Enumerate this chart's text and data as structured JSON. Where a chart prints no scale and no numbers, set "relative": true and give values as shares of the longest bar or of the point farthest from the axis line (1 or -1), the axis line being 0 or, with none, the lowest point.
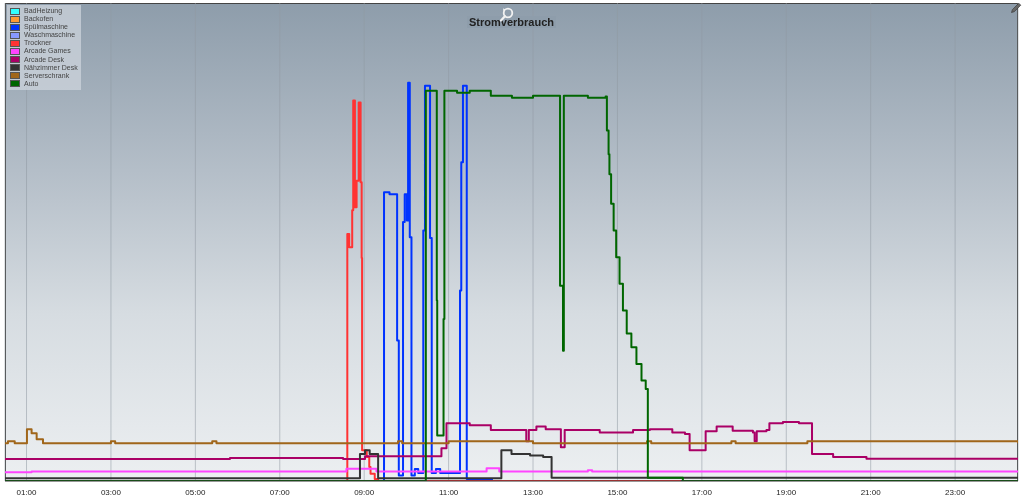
{
  "chart_data": {
    "type": "step",
    "title": "Stromverbrauch",
    "relative": true,
    "xlim": [
      0.49,
      24.49
    ],
    "xticks": [
      {
        "value": 1,
        "label": "01:00"
      },
      {
        "value": 3,
        "label": "03:00"
      },
      {
        "value": 5,
        "label": "05:00"
      },
      {
        "value": 7,
        "label": "07:00"
      },
      {
        "value": 9,
        "label": "09:00"
      },
      {
        "value": 11,
        "label": "11:00"
      },
      {
        "value": 13,
        "label": "13:00"
      },
      {
        "value": 15,
        "label": "15:00"
      },
      {
        "value": 17,
        "label": "17:00"
      },
      {
        "value": 19,
        "label": "19:00"
      },
      {
        "value": 21,
        "label": "21:00"
      },
      {
        "value": 23,
        "label": "23:00"
      }
    ],
    "tick_labels": "x",
    "grid": "x",
    "legend": "top left",
    "marker": "none",
    "line_style": "solid",
    "series": [
      {
        "name": "BadHeizung",
        "color": "#33ffff"
      },
      {
        "name": "Backofen",
        "color": "#ff9933"
      },
      {
        "name": "Spülmaschine",
        "color": "#0033ff",
        "x": [
          9.46,
          9.47,
          9.6,
          9.78,
          9.82,
          9.92,
          9.96,
          10.01,
          10.04,
          10.08,
          10.12,
          10.2,
          10.28,
          10.4,
          10.44,
          10.56,
          10.6,
          10.7,
          10.8,
          11.27,
          11.3,
          11.34,
          11.43,
          12.05
        ],
        "values": [
          0,
          0.725,
          0.72,
          0.353,
          0.014,
          0.65,
          0.72,
          0.654,
          1,
          0.612,
          0.014,
          0.03,
          0.02,
          0.629,
          0.992,
          0.61,
          0.02,
          0.03,
          0.02,
          0.478,
          0.8,
          0.992,
          0.005,
          0.005
        ]
      },
      {
        "name": "Waschmaschine",
        "color": "#8899ff"
      },
      {
        "name": "Trockner",
        "color": "#ff3333",
        "x": [
          8.59,
          8.6,
          8.645,
          8.716,
          8.74,
          8.78,
          8.82,
          8.87,
          8.915,
          8.94,
          8.95,
          9.06,
          9.12,
          9.15,
          9.25,
          9.33,
          16.5
        ],
        "values": [
          0,
          0.62,
          0.587,
          0.68,
          0.955,
          0.687,
          0.754,
          0.95,
          0.75,
          0.56,
          0.077,
          0.06,
          0.035,
          0.018,
          0.005,
          0,
          0
        ]
      },
      {
        "name": "Arcade Games",
        "color": "#ff44ff",
        "x": [
          0.49,
          1.12,
          8.58,
          9.29,
          11.9,
          12.2,
          14.3,
          14.4,
          24.49
        ],
        "values": [
          0.022,
          0.024,
          0.031,
          0.024,
          0.032,
          0.024,
          0.027,
          0.024,
          0.024
        ]
      },
      {
        "name": "Arcade Desk",
        "color": "#aa0066",
        "x": [
          0.49,
          5.82,
          8.5,
          9.02,
          10.83,
          10.95,
          11.5,
          12.0,
          12.84,
          12.9,
          13.08,
          13.3,
          13.66,
          13.75,
          14.58,
          15.37,
          15.77,
          16.3,
          16.6,
          16.71,
          17.09,
          17.35,
          17.73,
          18.21,
          18.25,
          18.3,
          18.53,
          18.6,
          18.92,
          19.3,
          19.61,
          20.11,
          20.9,
          24.49
        ],
        "values": [
          0.055,
          0.058,
          0.055,
          0.062,
          0.082,
          0.145,
          0.14,
          0.128,
          0.1,
          0.128,
          0.137,
          0.13,
          0.085,
          0.128,
          0.122,
          0.128,
          0.13,
          0.122,
          0.118,
          0.077,
          0.125,
          0.137,
          0.126,
          0.122,
          0.1,
          0.125,
          0.128,
          0.145,
          0.148,
          0.145,
          0.068,
          0.06,
          0.056,
          0.055
        ]
      },
      {
        "name": "Nähzimmer Desk",
        "color": "#333333",
        "x": [
          0.49,
          8.9,
          9.02,
          9.13,
          9.33,
          12.25,
          12.49,
          12.93,
          13.24,
          13.44,
          24.49
        ],
        "values": [
          0.007,
          0.068,
          0.077,
          0.068,
          0.007,
          0.077,
          0.068,
          0.064,
          0.06,
          0.008,
          0.008
        ]
      },
      {
        "name": "Serverschrank",
        "color": "#a0661a",
        "x": [
          0.49,
          0.56,
          0.72,
          1.01,
          1.12,
          1.24,
          1.39,
          3.0,
          3.1,
          5.4,
          5.5,
          9.8,
          9.9,
          11.0,
          13.0,
          15.7,
          15.8,
          17.7,
          17.8,
          19.5,
          24.49
        ],
        "values": [
          0.095,
          0.1,
          0.095,
          0.13,
          0.12,
          0.105,
          0.095,
          0.1,
          0.095,
          0.1,
          0.095,
          0.1,
          0.095,
          0.1,
          0.095,
          0.1,
          0.095,
          0.1,
          0.095,
          0.1,
          0.095
        ]
      },
      {
        "name": "Auto",
        "color": "#006600",
        "x": [
          0.49,
          10.46,
          10.72,
          10.73,
          10.88,
          10.9,
          11.2,
          11.5,
          12.0,
          12.5,
          13.0,
          13.64,
          13.71,
          13.73,
          14.3,
          14.72,
          14.75,
          14.79,
          14.81,
          14.85,
          14.91,
          14.97,
          15.05,
          15.13,
          15.22,
          15.33,
          15.45,
          15.57,
          15.67,
          15.72,
          16.55,
          24.49
        ],
        "values": [
          0,
          0.98,
          0.453,
          0.114,
          0.407,
          0.98,
          0.975,
          0.98,
          0.967,
          0.962,
          0.967,
          0.49,
          0.327,
          0.967,
          0.962,
          0.965,
          0.88,
          0.82,
          0.77,
          0.696,
          0.629,
          0.562,
          0.495,
          0.428,
          0.37,
          0.336,
          0.294,
          0.252,
          0.231,
          0.008,
          0,
          0
        ]
      }
    ]
  }
}
